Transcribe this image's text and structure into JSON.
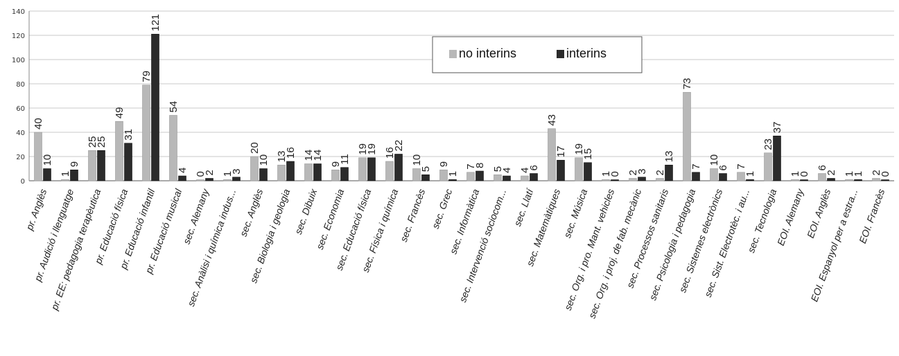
{
  "chart_data": {
    "type": "bar",
    "yticks": [
      0,
      20,
      40,
      60,
      80,
      100,
      120,
      140
    ],
    "ylim": [
      0,
      140
    ],
    "grid": true,
    "legend_position": "top-center",
    "colors": {
      "no_interins": "#b8b8b8",
      "interins": "#2b2b2b"
    },
    "categories": [
      "pr. Anglès",
      "pr. Audició i llenguatge",
      "pr. EE: pedagogia terapèutica",
      "pr. Educació física",
      "pr. Educació infantil",
      "pr. Educació musical",
      "sec. Alemany",
      "sec. Anàlisi i química indus...",
      "sec. Anglès",
      "sec. Biologia i geologia",
      "sec. Dibuix",
      "sec. Economia",
      "sec. Educació física",
      "sec. Física i química",
      "sec. Francès",
      "sec. Grec",
      "sec. Informàtica",
      "sec. Intervenció sociocom...",
      "sec. Llatí",
      "sec. Matemàtiques",
      "sec. Música",
      "sec. Org. i pro. Mant. vehicles",
      "sec. Org. i proj. de fab. mecànic",
      "sec. Processos sanitaris",
      "sec. Psicologia i pedagogia",
      "sec. Sistemes electrònics",
      "sec. Sist. Electrotèc. i au...",
      "sec. Tecnologia",
      "EOI. Alemany",
      "EOI. Anglès",
      "EOI. Espanyol per a estra...",
      "EOI. Francès"
    ],
    "series": [
      {
        "name": "no interins",
        "values": [
          40,
          1,
          25,
          49,
          79,
          54,
          0,
          1,
          20,
          13,
          14,
          9,
          19,
          16,
          10,
          9,
          7,
          5,
          4,
          43,
          19,
          1,
          2,
          2,
          73,
          10,
          7,
          23,
          1,
          6,
          1,
          2
        ]
      },
      {
        "name": "interins",
        "values": [
          10,
          9,
          25,
          31,
          121,
          4,
          2,
          3,
          10,
          16,
          14,
          11,
          19,
          22,
          5,
          1,
          8,
          4,
          6,
          17,
          15,
          0,
          3,
          13,
          7,
          6,
          1,
          37,
          0,
          2,
          1,
          0
        ]
      }
    ]
  }
}
